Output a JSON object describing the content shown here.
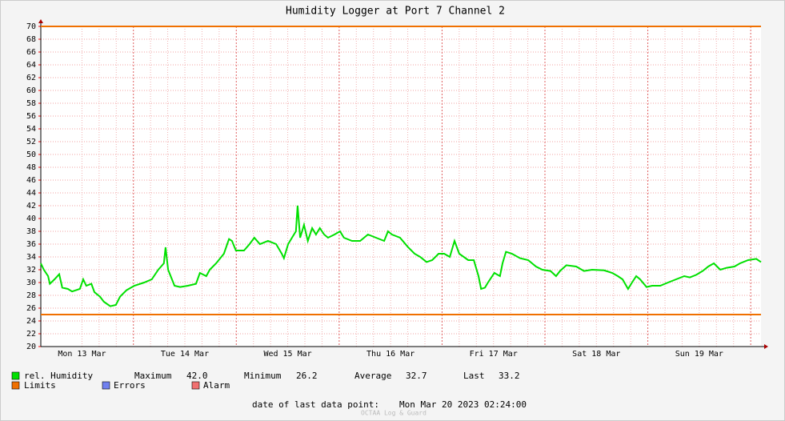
{
  "chart_data": {
    "type": "line",
    "title": "Humidity Logger at Port 7 Channel 2",
    "x": [
      0,
      0.7,
      1.7,
      2.1,
      3.2,
      4.3,
      5.0,
      6.3,
      7.3,
      9.1,
      9.9,
      10.6,
      11.8,
      12.5,
      13.8,
      14.7,
      16.2,
      17.5,
      18.5,
      20.0,
      21.8,
      24.1,
      25.9,
      27.4,
      28.7,
      29.1,
      29.7,
      31.2,
      32.5,
      34.3,
      36.2,
      37.1,
      38.6,
      39.4,
      40.9,
      42.7,
      43.9,
      44.6,
      45.5,
      47.4,
      48.7,
      49.8,
      51.1,
      53.0,
      54.9,
      56.2,
      56.7,
      57.7,
      58.6,
      59.5,
      59.9,
      60.5,
      61.4,
      62.3,
      63.3,
      64.2,
      65.1,
      66.1,
      67.0,
      68.5,
      69.8,
      70.7,
      72.6,
      74.5,
      76.3,
      78.2,
      80.1,
      81.0,
      81.9,
      83.8,
      85.7,
      87.2,
      88.5,
      90.0,
      91.3,
      92.8,
      94.1,
      95.4,
      96.5,
      97.6,
      99.7,
      101.0,
      102.1,
      102.7,
      103.6,
      104.3,
      105.8,
      107.1,
      107.7,
      108.5,
      109.9,
      111.8,
      113.7,
      115.5,
      117.0,
      118.9,
      120.2,
      121.1,
      122.6,
      124.9,
      126.7,
      128.6,
      131.4,
      133.3,
      134.6,
      135.7,
      137.0,
      137.9,
      138.9,
      139.8,
      141.3,
      142.6,
      144.5,
      146.3,
      148.2,
      150.1,
      151.4,
      152.9,
      154.4,
      155.7,
      157.0,
      158.5,
      160.0,
      161.8,
      163.1,
      165.0,
      166.9,
      168.0
    ],
    "series": [
      {
        "name": "rel. Humidity",
        "color": "#00e000",
        "values": [
          33,
          32,
          31,
          29.8,
          30.5,
          31.3,
          29.2,
          29,
          28.6,
          29,
          30.5,
          29.5,
          29.8,
          28.5,
          27.8,
          27,
          26.3,
          26.5,
          27.8,
          28.8,
          29.5,
          30,
          30.5,
          32,
          33,
          35.5,
          32,
          29.5,
          29.3,
          29.5,
          29.8,
          31.5,
          31,
          32,
          33,
          34.5,
          36.8,
          36.5,
          35,
          35,
          36,
          37,
          36,
          36.5,
          36,
          34.5,
          33.8,
          36,
          37,
          38,
          42,
          37,
          39,
          36.5,
          38.5,
          37.5,
          38.5,
          37.5,
          37,
          37.5,
          38,
          37,
          36.5,
          36.5,
          37.5,
          37,
          36.5,
          38,
          37.5,
          37,
          35.5,
          34.5,
          34,
          33.2,
          33.5,
          34.5,
          34.5,
          34,
          36.5,
          34.5,
          33.5,
          33.5,
          31,
          29,
          29.2,
          30,
          31.5,
          31,
          33,
          34.8,
          34.5,
          33.8,
          33.5,
          32.5,
          32,
          31.8,
          31,
          31.8,
          32.7,
          32.5,
          31.8,
          32,
          31.9,
          31.5,
          31,
          30.5,
          29,
          30,
          31,
          30.5,
          29.3,
          29.5,
          29.5,
          30,
          30.5,
          31,
          30.8,
          31.2,
          31.8,
          32.5,
          33,
          32,
          32.3,
          32.5,
          33,
          33.5,
          33.7,
          33.2
        ]
      }
    ],
    "limits": {
      "name": "Limits",
      "color": "#f07000",
      "values": [
        70,
        25
      ]
    },
    "legend_extra": [
      {
        "name": "Errors",
        "color": "#7080f0"
      },
      {
        "name": "Alarm",
        "color": "#f07070"
      }
    ],
    "stats": {
      "names": [
        "Maximum",
        "Minimum",
        "Average",
        "Last"
      ],
      "values": [
        42.0,
        26.2,
        32.7,
        33.2
      ],
      "value_labels": [
        "42.0",
        "26.2",
        "32.7",
        "33.2"
      ]
    },
    "xlim": [
      0,
      168
    ],
    "xticks": [
      {
        "value": 9.6,
        "label": "Mon 13 Mar"
      },
      {
        "value": 33.6,
        "label": "Tue 14 Mar"
      },
      {
        "value": 57.6,
        "label": "Wed 15 Mar"
      },
      {
        "value": 81.6,
        "label": "Thu 16 Mar"
      },
      {
        "value": 105.6,
        "label": "Fri 17 Mar"
      },
      {
        "value": 129.6,
        "label": "Sat 18 Mar"
      },
      {
        "value": 153.6,
        "label": "Sun 19 Mar"
      }
    ],
    "ylim": [
      20,
      70
    ],
    "yticks": [
      20,
      22,
      24,
      26,
      28,
      30,
      32,
      34,
      36,
      38,
      40,
      42,
      44,
      46,
      48,
      50,
      52,
      54,
      56,
      58,
      60,
      62,
      64,
      66,
      68,
      70
    ],
    "grid": true,
    "footer_label": "date of last data point:",
    "footer_date": "Mon Mar 20 2023 02:24:00",
    "watermark": "OCTAA Log & Guard"
  }
}
